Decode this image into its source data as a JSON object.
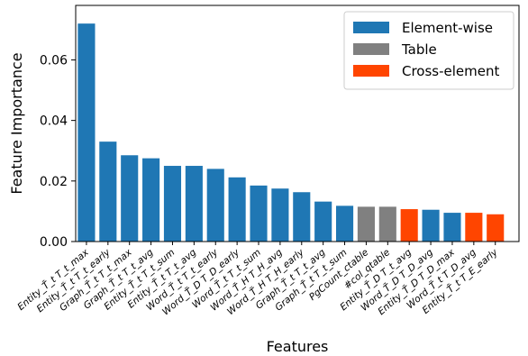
{
  "chart_data": {
    "type": "bar",
    "xlabel": "Features",
    "ylabel": "Feature Importance",
    "ylim": [
      0,
      0.078
    ],
    "yticks": [
      0.0,
      0.02,
      0.04,
      0.06
    ],
    "ytick_labels": [
      "0.00",
      "0.02",
      "0.04",
      "0.06"
    ],
    "categories": [
      "Entity_T̃_t T_t_max",
      "Entity_T̃_t T_t_early",
      "Graph_T̃_t T_t_max",
      "Graph_T̃_t T_t_avg",
      "Entity_T̃_t T_t_sum",
      "Entity_T̃_t T_t_avg",
      "Word_T̃_t T_t_early",
      "Word_T̃_D T_D_early",
      "Word_T̃_t T_t_sum",
      "Word_T̃_H T_H_avg",
      "Word_T̃_H T_H_early",
      "Graph_T̃_t T_t_avg",
      "Graph_T̃_t T_t_sum",
      "PgCount_ctable",
      "#col_qtable",
      "Entity_T̃_D T_t_avg",
      "Word_T̃_D T_D_avg",
      "Entity_T̃_D T_D_max",
      "Word_T̃_t T_D_avg",
      "Entity_T̃_t T_E_early"
    ],
    "values": [
      0.072,
      0.033,
      0.0285,
      0.0275,
      0.025,
      0.025,
      0.024,
      0.0212,
      0.0185,
      0.0175,
      0.0163,
      0.0132,
      0.0118,
      0.0115,
      0.0115,
      0.0107,
      0.0105,
      0.0095,
      0.0095,
      0.009
    ],
    "groups": [
      "Element-wise",
      "Element-wise",
      "Element-wise",
      "Element-wise",
      "Element-wise",
      "Element-wise",
      "Element-wise",
      "Element-wise",
      "Element-wise",
      "Element-wise",
      "Element-wise",
      "Element-wise",
      "Element-wise",
      "Table",
      "Table",
      "Cross-element",
      "Element-wise",
      "Element-wise",
      "Cross-element",
      "Cross-element"
    ],
    "legend": [
      {
        "name": "Element-wise",
        "color": "#1f77b4"
      },
      {
        "name": "Table",
        "color": "#808080"
      },
      {
        "name": "Cross-element",
        "color": "#ff4500"
      }
    ],
    "legend_position": "top-right",
    "grid": false
  }
}
